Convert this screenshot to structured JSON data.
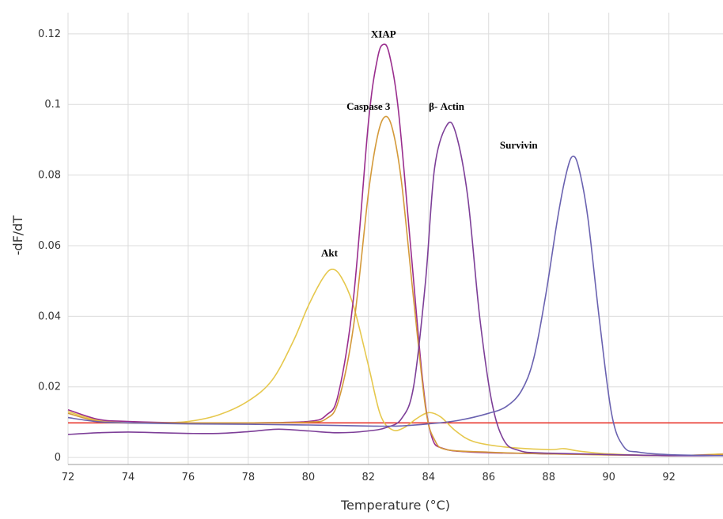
{
  "chart_data": {
    "type": "line",
    "title": "",
    "xlabel": "Temperature (°C)",
    "ylabel": "-dF/dT",
    "xlim": [
      72,
      93.8
    ],
    "ylim": [
      -0.002,
      0.126
    ],
    "grid": true,
    "legend": "none",
    "x_ticks": [
      72,
      74,
      76,
      78,
      80,
      82,
      84,
      86,
      88,
      90,
      92
    ],
    "y_ticks": [
      {
        "v": 0,
        "label": "0"
      },
      {
        "v": 0.02,
        "label": "0.02"
      },
      {
        "v": 0.04,
        "label": "0.04"
      },
      {
        "v": 0.06,
        "label": "0.06"
      },
      {
        "v": 0.08,
        "label": "0.08"
      },
      {
        "v": 0.1,
        "label": "0.1"
      },
      {
        "v": 0.12,
        "label": "0.12"
      }
    ],
    "series": [
      {
        "name": "Akt",
        "color": "#e6c84d",
        "label_at": [
          80.7,
          0.057
        ],
        "points": [
          [
            72,
            0.013
          ],
          [
            73,
            0.0105
          ],
          [
            74,
            0.0098
          ],
          [
            75,
            0.0098
          ],
          [
            76,
            0.0102
          ],
          [
            77,
            0.012
          ],
          [
            78,
            0.016
          ],
          [
            78.8,
            0.022
          ],
          [
            79.5,
            0.033
          ],
          [
            80.0,
            0.043
          ],
          [
            80.5,
            0.051
          ],
          [
            80.8,
            0.0533
          ],
          [
            81.1,
            0.051
          ],
          [
            81.5,
            0.043
          ],
          [
            82.0,
            0.026
          ],
          [
            82.4,
            0.012
          ],
          [
            82.8,
            0.0078
          ],
          [
            83.2,
            0.0085
          ],
          [
            83.6,
            0.011
          ],
          [
            84.0,
            0.0127
          ],
          [
            84.4,
            0.0115
          ],
          [
            84.9,
            0.0075
          ],
          [
            85.5,
            0.0045
          ],
          [
            86.5,
            0.003
          ],
          [
            88,
            0.0022
          ],
          [
            88.5,
            0.0025
          ],
          [
            89,
            0.0018
          ],
          [
            90,
            0.001
          ],
          [
            92,
            0.0005
          ],
          [
            93.8,
            0.001
          ]
        ]
      },
      {
        "name": "XIAP",
        "color": "#9a2e8e",
        "label_at": [
          82.5,
          0.119
        ],
        "points": [
          [
            72,
            0.0135
          ],
          [
            73,
            0.0108
          ],
          [
            74,
            0.0102
          ],
          [
            76,
            0.0098
          ],
          [
            78,
            0.0098
          ],
          [
            80,
            0.0102
          ],
          [
            80.6,
            0.012
          ],
          [
            81.0,
            0.018
          ],
          [
            81.5,
            0.045
          ],
          [
            82.0,
            0.095
          ],
          [
            82.3,
            0.113
          ],
          [
            82.5,
            0.117
          ],
          [
            82.7,
            0.114
          ],
          [
            83.0,
            0.098
          ],
          [
            83.4,
            0.06
          ],
          [
            83.8,
            0.022
          ],
          [
            84.1,
            0.006
          ],
          [
            84.5,
            0.0025
          ],
          [
            85.5,
            0.0015
          ],
          [
            88,
            0.001
          ],
          [
            90,
            0.0008
          ],
          [
            92,
            0.0005
          ],
          [
            93.8,
            0.0008
          ]
        ]
      },
      {
        "name": "Caspase 3",
        "color": "#d49a3a",
        "label_at": [
          82.0,
          0.0985
        ],
        "points": [
          [
            72,
            0.0125
          ],
          [
            73,
            0.0102
          ],
          [
            74,
            0.0098
          ],
          [
            76,
            0.0098
          ],
          [
            78,
            0.0098
          ],
          [
            80,
            0.01
          ],
          [
            80.6,
            0.011
          ],
          [
            81.0,
            0.016
          ],
          [
            81.5,
            0.037
          ],
          [
            82.0,
            0.075
          ],
          [
            82.3,
            0.091
          ],
          [
            82.55,
            0.0965
          ],
          [
            82.8,
            0.093
          ],
          [
            83.1,
            0.078
          ],
          [
            83.5,
            0.045
          ],
          [
            83.9,
            0.014
          ],
          [
            84.2,
            0.005
          ],
          [
            84.6,
            0.0022
          ],
          [
            86,
            0.0015
          ],
          [
            88,
            0.001
          ],
          [
            92,
            0.0005
          ],
          [
            93.8,
            0.0008
          ]
        ]
      },
      {
        "name": "β- Actin",
        "color": "#7d3f98",
        "label_at": [
          84.6,
          0.0985
        ],
        "points": [
          [
            72,
            0.0065
          ],
          [
            73,
            0.007
          ],
          [
            74,
            0.0072
          ],
          [
            75,
            0.007
          ],
          [
            76,
            0.0068
          ],
          [
            77,
            0.0068
          ],
          [
            78,
            0.0073
          ],
          [
            79,
            0.008
          ],
          [
            80,
            0.0075
          ],
          [
            81,
            0.007
          ],
          [
            82,
            0.0075
          ],
          [
            82.6,
            0.0085
          ],
          [
            83.1,
            0.011
          ],
          [
            83.5,
            0.02
          ],
          [
            83.9,
            0.05
          ],
          [
            84.2,
            0.082
          ],
          [
            84.6,
            0.094
          ],
          [
            84.9,
            0.092
          ],
          [
            85.3,
            0.074
          ],
          [
            85.7,
            0.04
          ],
          [
            86.1,
            0.016
          ],
          [
            86.5,
            0.005
          ],
          [
            87,
            0.002
          ],
          [
            88,
            0.0012
          ],
          [
            92,
            0.0005
          ],
          [
            93.8,
            0.0005
          ]
        ]
      },
      {
        "name": "Survivin",
        "color": "#6a62b0",
        "label_at": [
          87.0,
          0.0875
        ],
        "points": [
          [
            72,
            0.0113
          ],
          [
            73,
            0.0101
          ],
          [
            74,
            0.0098
          ],
          [
            76,
            0.0095
          ],
          [
            78,
            0.0094
          ],
          [
            80,
            0.0092
          ],
          [
            82,
            0.0089
          ],
          [
            83,
            0.0089
          ],
          [
            84,
            0.0095
          ],
          [
            85,
            0.0105
          ],
          [
            86,
            0.0125
          ],
          [
            86.6,
            0.0145
          ],
          [
            87.1,
            0.019
          ],
          [
            87.5,
            0.028
          ],
          [
            87.9,
            0.046
          ],
          [
            88.3,
            0.068
          ],
          [
            88.6,
            0.081
          ],
          [
            88.8,
            0.0853
          ],
          [
            89.0,
            0.082
          ],
          [
            89.3,
            0.068
          ],
          [
            89.7,
            0.038
          ],
          [
            90.1,
            0.012
          ],
          [
            90.5,
            0.003
          ],
          [
            91,
            0.0015
          ],
          [
            92,
            0.0008
          ],
          [
            93.8,
            0.0005
          ]
        ]
      }
    ],
    "baseline": {
      "value": 0.0098,
      "color": "#e8382f"
    }
  }
}
